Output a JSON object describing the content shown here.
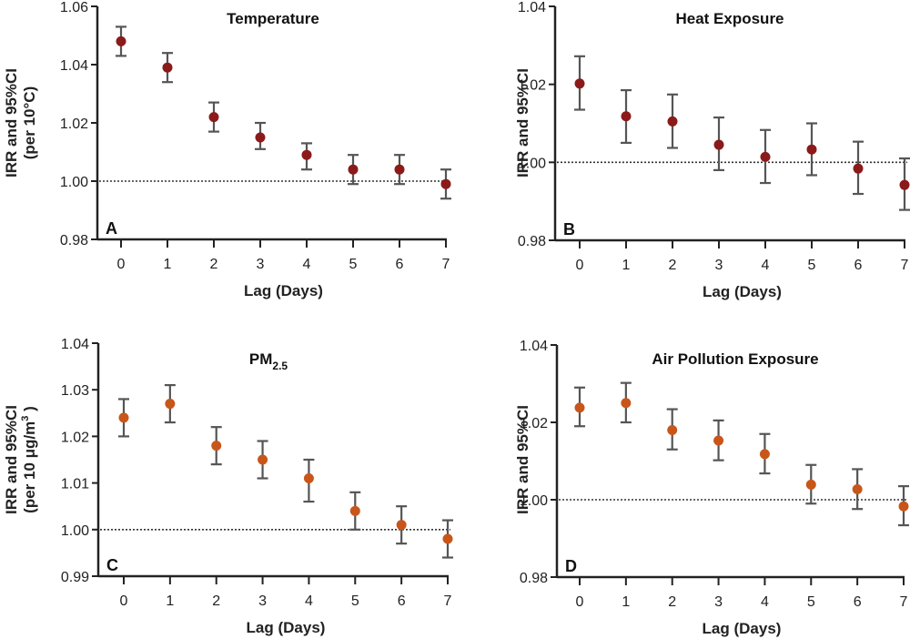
{
  "chart_data": [
    {
      "id": "A",
      "type": "scatter",
      "title": "Temperature",
      "title_sub": "",
      "panel_letter": "A",
      "xlabel": "Lag (Days)",
      "ylabel": [
        "IRR and 95%CI",
        "(per 10°C)"
      ],
      "ylabel_sup": "",
      "ylabel_tail": "",
      "ylim": [
        0.98,
        1.06
      ],
      "yticks": [
        0.98,
        1.0,
        1.02,
        1.04,
        1.06
      ],
      "ytick_labels": [
        "0.98",
        "1.00",
        "1.02",
        "1.04",
        "1.06"
      ],
      "x": [
        0,
        1,
        2,
        3,
        4,
        5,
        6,
        7
      ],
      "xtick_labels": [
        "0",
        "1",
        "2",
        "3",
        "4",
        "5",
        "6",
        "7"
      ],
      "reference_line": 1.0,
      "color": "#8B1A1A",
      "errorbar_color": "#555555",
      "values": [
        1.048,
        1.039,
        1.022,
        1.015,
        1.009,
        1.004,
        1.004,
        0.999
      ],
      "ci_lower": [
        1.043,
        1.034,
        1.017,
        1.011,
        1.004,
        0.999,
        0.999,
        0.994
      ],
      "ci_upper": [
        1.053,
        1.044,
        1.027,
        1.02,
        1.013,
        1.009,
        1.009,
        1.004
      ]
    },
    {
      "id": "B",
      "type": "scatter",
      "title": "Heat Exposure",
      "title_sub": "",
      "panel_letter": "B",
      "xlabel": "Lag (Days)",
      "ylabel": [
        "IRR and 95%CI"
      ],
      "ylabel_sup": "",
      "ylabel_tail": "",
      "ylim": [
        0.98,
        1.04
      ],
      "yticks": [
        0.98,
        1.0,
        1.02,
        1.04
      ],
      "ytick_labels": [
        "0.98",
        "1.00",
        "1.02",
        "1.04"
      ],
      "x": [
        0,
        1,
        2,
        3,
        4,
        5,
        6,
        7
      ],
      "xtick_labels": [
        "0",
        "1",
        "2",
        "3",
        "4",
        "5",
        "6",
        "7"
      ],
      "reference_line": 1.0,
      "color": "#8B1A1A",
      "errorbar_color": "#555555",
      "values": [
        1.0202,
        1.0118,
        1.0105,
        1.0045,
        1.0014,
        1.0033,
        0.9984,
        0.9942
      ],
      "ci_lower": [
        1.0135,
        1.005,
        1.0037,
        0.998,
        0.9947,
        0.9967,
        0.9919,
        0.9878
      ],
      "ci_upper": [
        1.0272,
        1.0185,
        1.0174,
        1.0115,
        1.0083,
        1.01,
        1.0053,
        1.001
      ]
    },
    {
      "id": "C",
      "type": "scatter",
      "title": "PM",
      "title_sub": "2.5",
      "panel_letter": "C",
      "xlabel": "Lag (Days)",
      "ylabel": [
        "IRR and 95%CI",
        "(per 10 μg/m"
      ],
      "ylabel_sup": "3",
      "ylabel_tail": " )",
      "ylim": [
        0.99,
        1.04
      ],
      "yticks": [
        0.99,
        1.0,
        1.01,
        1.02,
        1.03,
        1.04
      ],
      "ytick_labels": [
        "0.99",
        "1.00",
        "1.01",
        "1.02",
        "1.03",
        "1.04"
      ],
      "x": [
        0,
        1,
        2,
        3,
        4,
        5,
        6,
        7
      ],
      "xtick_labels": [
        "0",
        "1",
        "2",
        "3",
        "4",
        "5",
        "6",
        "7"
      ],
      "reference_line": 1.0,
      "color": "#C8561A",
      "errorbar_color": "#555555",
      "values": [
        1.024,
        1.027,
        1.018,
        1.015,
        1.011,
        1.004,
        1.001,
        0.998
      ],
      "ci_lower": [
        1.02,
        1.023,
        1.014,
        1.011,
        1.006,
        1.0,
        0.997,
        0.994
      ],
      "ci_upper": [
        1.028,
        1.031,
        1.022,
        1.019,
        1.015,
        1.008,
        1.005,
        1.002
      ]
    },
    {
      "id": "D",
      "type": "scatter",
      "title": "Air Pollution Exposure",
      "title_sub": "",
      "panel_letter": "D",
      "xlabel": "Lag (Days)",
      "ylabel": [
        "IRR and 95%CI"
      ],
      "ylabel_sup": "",
      "ylabel_tail": "",
      "ylim": [
        0.98,
        1.04
      ],
      "yticks": [
        0.98,
        1.0,
        1.02,
        1.04
      ],
      "ytick_labels": [
        "0.98",
        "1.00",
        "1.02",
        "1.04"
      ],
      "x": [
        0,
        1,
        2,
        3,
        4,
        5,
        6,
        7
      ],
      "xtick_labels": [
        "0",
        "1",
        "2",
        "3",
        "4",
        "5",
        "6",
        "7"
      ],
      "reference_line": 1.0,
      "color": "#C8561A",
      "errorbar_color": "#555555",
      "values": [
        1.0238,
        1.025,
        1.018,
        1.0153,
        1.0118,
        1.0039,
        1.0027,
        0.9983
      ],
      "ci_lower": [
        1.019,
        1.02,
        1.013,
        1.0102,
        1.0068,
        0.999,
        0.9976,
        0.9934
      ],
      "ci_upper": [
        1.029,
        1.0302,
        1.0234,
        1.0205,
        1.017,
        1.009,
        1.0079,
        1.0035
      ]
    }
  ]
}
